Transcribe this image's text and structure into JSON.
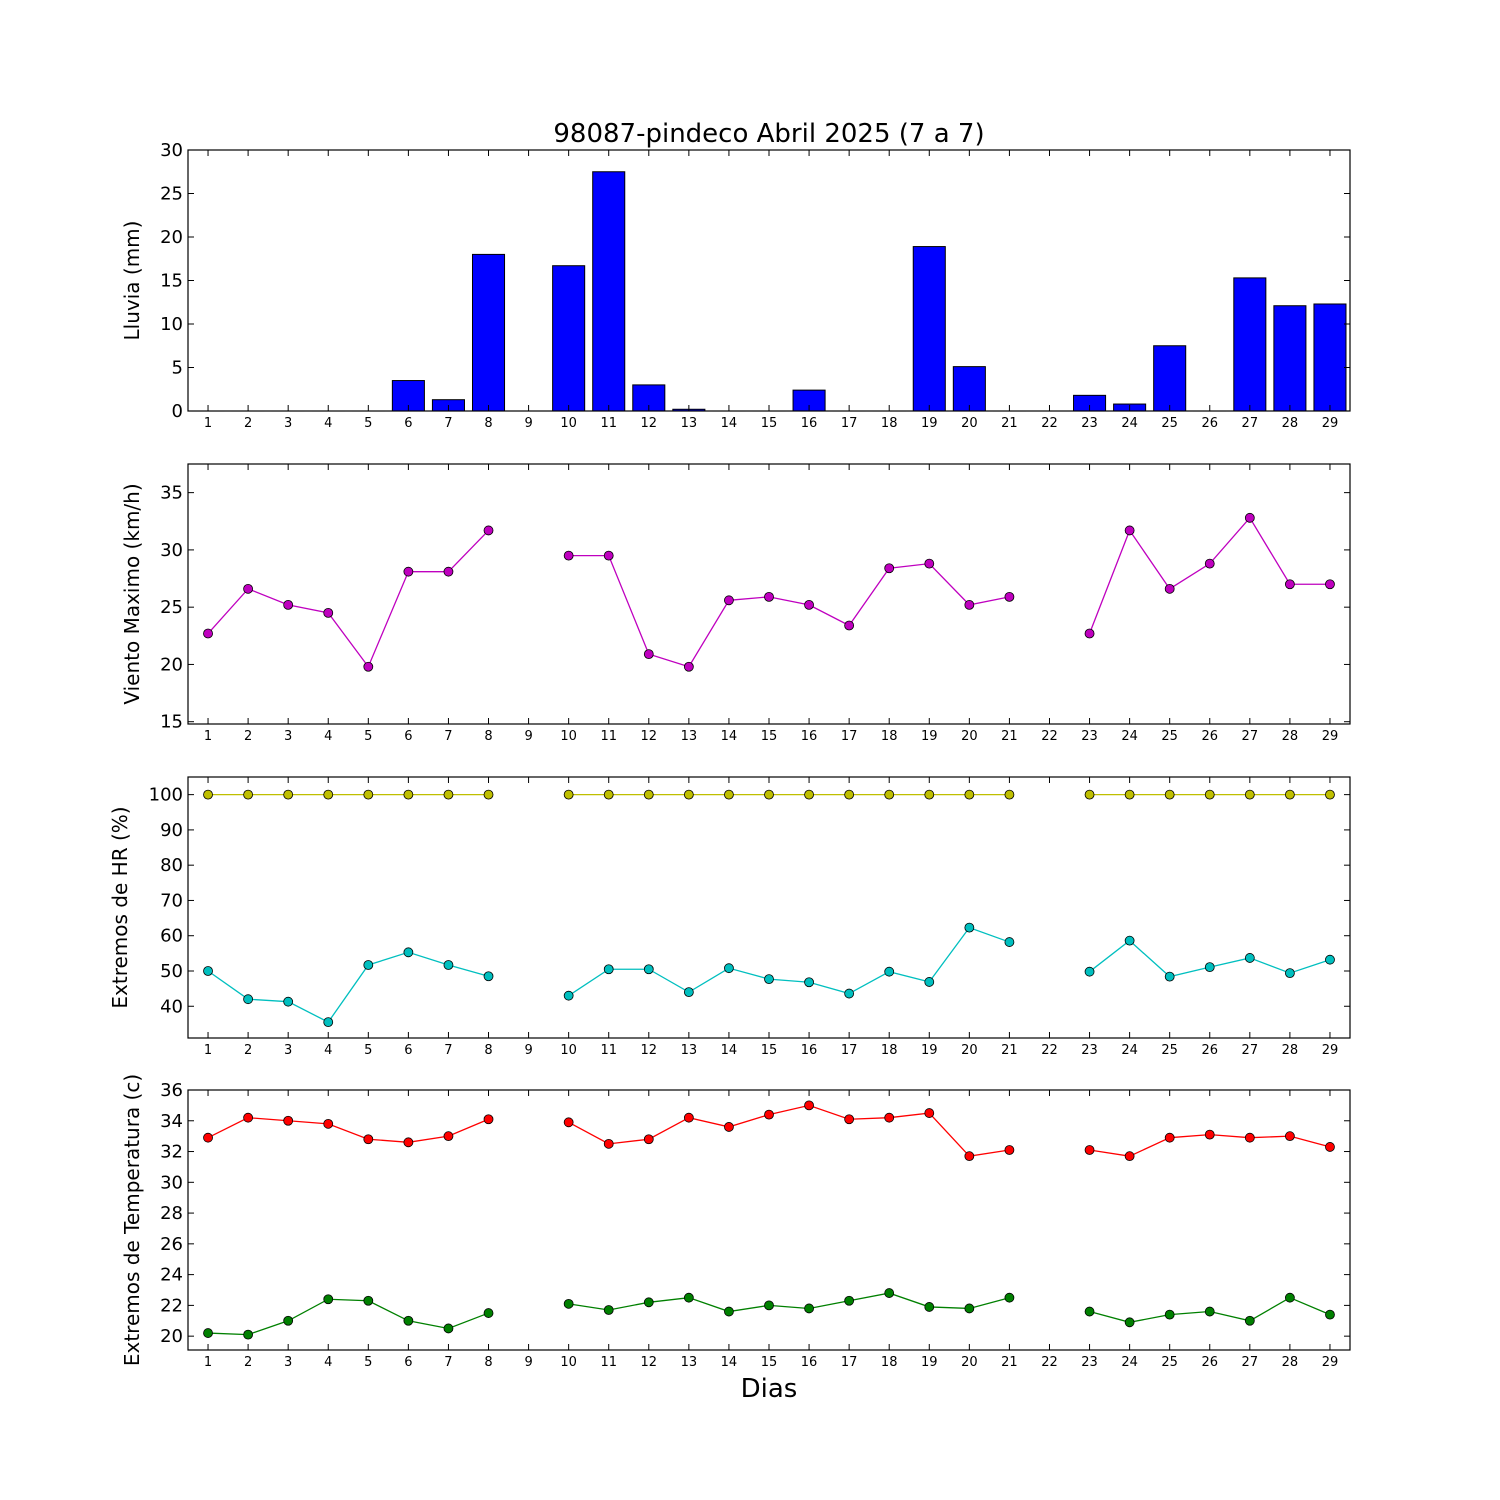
{
  "title": "98087-pindeco Abril 2025  (7 a 7)",
  "xlabel": "Dias",
  "chart_data": [
    {
      "type": "bar",
      "ylabel": "Lluvia (mm)",
      "ylim": [
        0,
        30
      ],
      "yticks": [
        0,
        5,
        10,
        15,
        20,
        25,
        30
      ],
      "x": [
        1,
        2,
        3,
        4,
        5,
        6,
        7,
        8,
        9,
        10,
        11,
        12,
        13,
        14,
        15,
        16,
        17,
        18,
        19,
        20,
        21,
        22,
        23,
        24,
        25,
        26,
        27,
        28,
        29
      ],
      "series": [
        {
          "color": "#0000ff",
          "values": [
            0,
            0,
            0,
            0,
            0,
            3.5,
            1.3,
            18,
            null,
            16.7,
            27.5,
            3,
            0.2,
            0,
            0,
            2.4,
            0,
            0,
            18.9,
            5.1,
            0,
            null,
            1.8,
            0.8,
            7.5,
            0,
            15.3,
            12.1,
            12.3
          ]
        }
      ]
    },
    {
      "type": "line",
      "ylabel": "Viento Maximo (km/h)",
      "ylim": [
        14.8,
        37.5
      ],
      "yticks": [
        15,
        20,
        25,
        30,
        35
      ],
      "x": [
        1,
        2,
        3,
        4,
        5,
        6,
        7,
        8,
        9,
        10,
        11,
        12,
        13,
        14,
        15,
        16,
        17,
        18,
        19,
        20,
        21,
        22,
        23,
        24,
        25,
        26,
        27,
        28,
        29
      ],
      "series": [
        {
          "color": "#bf00bf",
          "values": [
            22.7,
            26.6,
            25.2,
            24.5,
            19.8,
            28.1,
            28.1,
            31.7,
            null,
            29.5,
            29.5,
            20.9,
            19.8,
            25.6,
            25.9,
            25.2,
            23.4,
            28.4,
            28.8,
            25.2,
            25.9,
            null,
            22.7,
            31.7,
            26.6,
            28.8,
            32.8,
            27,
            27
          ]
        }
      ]
    },
    {
      "type": "line",
      "ylabel": "Extremos de HR (%)",
      "ylim": [
        31,
        105
      ],
      "yticks": [
        40,
        50,
        60,
        70,
        80,
        90,
        100
      ],
      "x": [
        1,
        2,
        3,
        4,
        5,
        6,
        7,
        8,
        9,
        10,
        11,
        12,
        13,
        14,
        15,
        16,
        17,
        18,
        19,
        20,
        21,
        22,
        23,
        24,
        25,
        26,
        27,
        28,
        29
      ],
      "series": [
        {
          "color": "#bfbf00",
          "values": [
            100,
            100,
            100,
            100,
            100,
            100,
            100,
            100,
            null,
            100,
            100,
            100,
            100,
            100,
            100,
            100,
            100,
            100,
            100,
            100,
            100,
            null,
            100,
            100,
            100,
            100,
            100,
            100,
            100
          ]
        },
        {
          "color": "#00bfbf",
          "values": [
            50,
            42,
            41.3,
            35.5,
            51.7,
            55.3,
            51.7,
            48.5,
            null,
            43,
            50.5,
            50.5,
            44,
            50.8,
            47.7,
            46.8,
            43.6,
            49.8,
            46.9,
            62.3,
            58.2,
            null,
            49.8,
            58.6,
            48.4,
            51.1,
            53.7,
            49.4,
            53.2
          ]
        }
      ]
    },
    {
      "type": "line",
      "ylabel": "Extremos de Temperatura (c)",
      "ylim": [
        19.1,
        36
      ],
      "yticks": [
        20,
        22,
        24,
        26,
        28,
        30,
        32,
        34,
        36
      ],
      "x": [
        1,
        2,
        3,
        4,
        5,
        6,
        7,
        8,
        9,
        10,
        11,
        12,
        13,
        14,
        15,
        16,
        17,
        18,
        19,
        20,
        21,
        22,
        23,
        24,
        25,
        26,
        27,
        28,
        29
      ],
      "series": [
        {
          "color": "#ff0000",
          "values": [
            32.9,
            34.2,
            34,
            33.8,
            32.8,
            32.6,
            33,
            34.1,
            null,
            33.9,
            32.5,
            32.8,
            34.2,
            33.6,
            34.4,
            35,
            34.1,
            34.2,
            34.5,
            31.7,
            32.1,
            null,
            32.1,
            31.7,
            32.9,
            33.1,
            32.9,
            33,
            32.3
          ]
        },
        {
          "color": "#008000",
          "values": [
            20.2,
            20.1,
            21,
            22.4,
            22.3,
            21,
            20.5,
            21.5,
            null,
            22.1,
            21.7,
            22.2,
            22.5,
            21.6,
            22,
            21.8,
            22.3,
            22.8,
            21.9,
            21.8,
            22.5,
            null,
            21.6,
            20.9,
            21.4,
            21.6,
            21,
            22.5,
            21.4
          ]
        }
      ]
    }
  ]
}
